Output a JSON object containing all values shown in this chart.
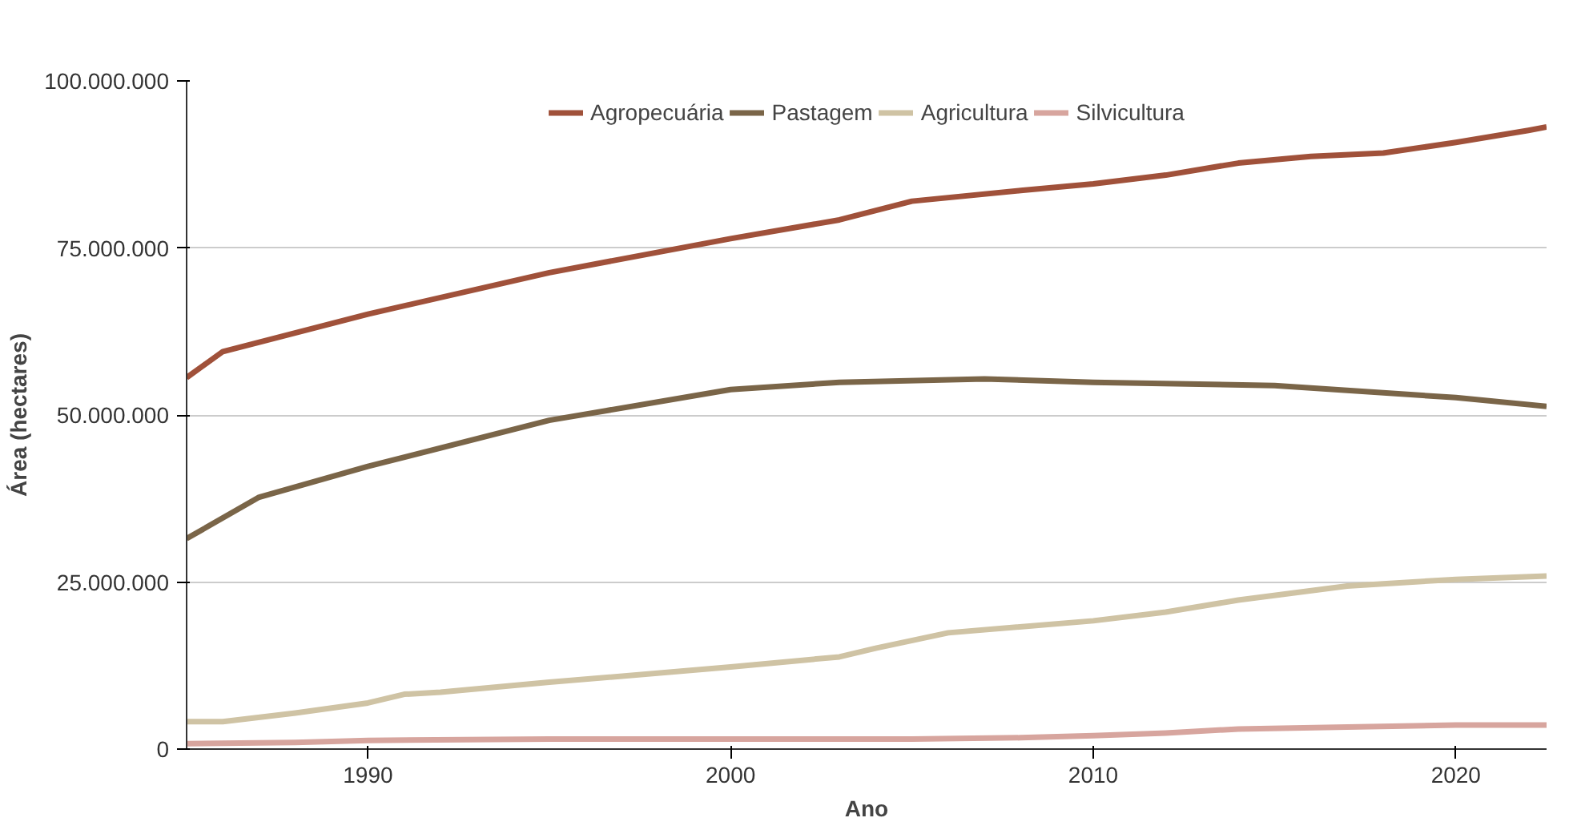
{
  "chart_data": {
    "type": "line",
    "xlabel": "Ano",
    "ylabel": "Área (hectares)",
    "xlim": [
      1985,
      2022.5
    ],
    "xticks": [
      1990,
      2000,
      2010,
      2020
    ],
    "ylim": [
      0,
      100000000
    ],
    "yticks": [
      {
        "value": 0,
        "label": "0"
      },
      {
        "value": 25000000,
        "label": "25.000.000"
      },
      {
        "value": 50000000,
        "label": "50.000.000"
      },
      {
        "value": 75000000,
        "label": "75.000.000"
      },
      {
        "value": 100000000,
        "label": "100.000.000"
      }
    ],
    "grid": "y",
    "legend": "top",
    "line_style": "solid",
    "marker": "none",
    "series": [
      {
        "name": "Agropecuária",
        "color": "#a0513a",
        "x": [
          1985,
          1986,
          1990,
          1995,
          2000,
          2003,
          2005,
          2008,
          2010,
          2012,
          2014,
          2016,
          2018,
          2020,
          2022,
          2022.5
        ],
        "values": [
          55600000,
          59500000,
          65100000,
          71300000,
          76400000,
          79200000,
          82000000,
          83600000,
          84600000,
          85900000,
          87700000,
          88700000,
          89200000,
          90800000,
          92600000,
          93100000
        ]
      },
      {
        "name": "Pastagem",
        "color": "#7a6548",
        "x": [
          1985,
          1987,
          1990,
          1995,
          2000,
          2003,
          2007,
          2010,
          2015,
          2020,
          2022.5
        ],
        "values": [
          31500000,
          37700000,
          42300000,
          49200000,
          53800000,
          54900000,
          55400000,
          54900000,
          54400000,
          52600000,
          51300000
        ]
      },
      {
        "name": "Agricultura",
        "color": "#cfc3a4",
        "x": [
          1985,
          1986,
          1988,
          1990,
          1991,
          1992,
          1995,
          2000,
          2003,
          2004,
          2006,
          2010,
          2012,
          2014,
          2017,
          2020,
          2022.5
        ],
        "values": [
          4100000,
          4100000,
          5400000,
          6900000,
          8200000,
          8500000,
          10000000,
          12300000,
          13800000,
          15100000,
          17400000,
          19200000,
          20500000,
          22300000,
          24400000,
          25400000,
          25900000
        ]
      },
      {
        "name": "Silvicultura",
        "color": "#d7a59e",
        "x": [
          1985,
          1988,
          1990,
          1995,
          2000,
          2005,
          2008,
          2010,
          2012,
          2014,
          2017,
          2020,
          2022.5
        ],
        "values": [
          800000,
          1000000,
          1300000,
          1500000,
          1500000,
          1500000,
          1700000,
          2000000,
          2400000,
          3000000,
          3300000,
          3600000,
          3600000
        ]
      }
    ]
  }
}
